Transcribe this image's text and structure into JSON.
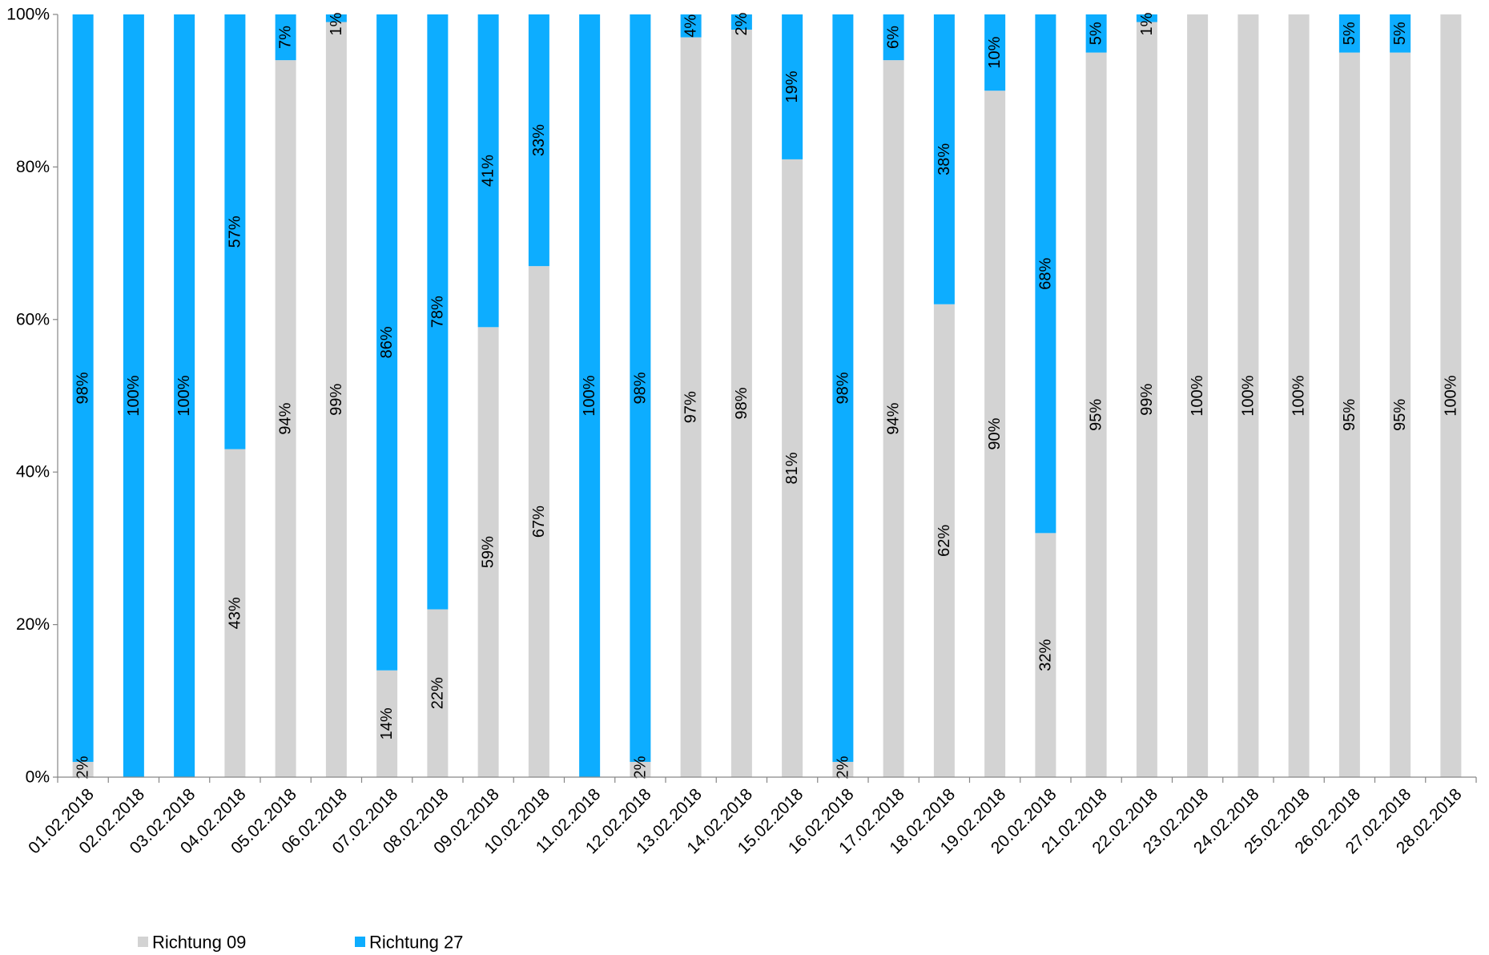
{
  "chart_data": {
    "type": "bar",
    "stacked": true,
    "orientation": "vertical",
    "categories": [
      "01.02.2018",
      "02.02.2018",
      "03.02.2018",
      "04.02.2018",
      "05.02.2018",
      "06.02.2018",
      "07.02.2018",
      "08.02.2018",
      "09.02.2018",
      "10.02.2018",
      "11.02.2018",
      "12.02.2018",
      "13.02.2018",
      "14.02.2018",
      "15.02.2018",
      "16.02.2018",
      "17.02.2018",
      "18.02.2018",
      "19.02.2018",
      "20.02.2018",
      "21.02.2018",
      "22.02.2018",
      "23.02.2018",
      "24.02.2018",
      "25.02.2018",
      "26.02.2018",
      "27.02.2018",
      "28.02.2018"
    ],
    "series": [
      {
        "name": "Richtung 09",
        "color": "#d3d3d3",
        "values": [
          2,
          0,
          0,
          43,
          94,
          99,
          14,
          22,
          59,
          67,
          0,
          2,
          97,
          98,
          81,
          2,
          94,
          62,
          90,
          32,
          95,
          99,
          100,
          100,
          100,
          95,
          95,
          100
        ],
        "labels": [
          "2%",
          "",
          "",
          "43%",
          "94%",
          "99%",
          "14%",
          "22%",
          "59%",
          "67%",
          "",
          "2%",
          "97%",
          "98%",
          "81%",
          "2%",
          "94%",
          "62%",
          "90%",
          "32%",
          "95%",
          "99%",
          "100%",
          "100%",
          "100%",
          "95%",
          "95%",
          "100%"
        ]
      },
      {
        "name": "Richtung 27",
        "color": "#0dadff",
        "values": [
          98,
          100,
          100,
          57,
          7,
          1,
          86,
          78,
          41,
          33,
          100,
          98,
          4,
          2,
          19,
          98,
          6,
          38,
          10,
          68,
          5,
          1,
          0,
          0,
          0,
          5,
          5,
          0
        ],
        "labels": [
          "98%",
          "100%",
          "100%",
          "57%",
          "7%",
          "1%",
          "86%",
          "78%",
          "41%",
          "33%",
          "100%",
          "98%",
          "4%",
          "2%",
          "19%",
          "98%",
          "6%",
          "38%",
          "10%",
          "68%",
          "5%",
          "1%",
          "",
          "",
          "",
          "5%",
          "5%",
          ""
        ]
      }
    ],
    "ylim": [
      0,
      100
    ],
    "yticks": [
      "0%",
      "20%",
      "40%",
      "60%",
      "80%",
      "100%"
    ],
    "grid": false,
    "legend": "bottom-left"
  }
}
